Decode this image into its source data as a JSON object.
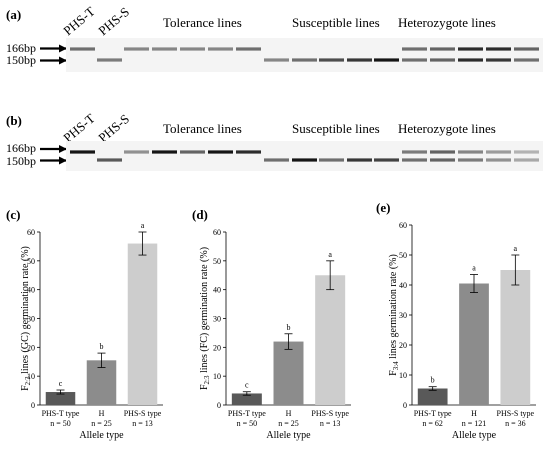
{
  "gels": [
    {
      "panel": "(a)",
      "size_labels": [
        "166bp",
        "150bp"
      ],
      "col_labels": [
        "PHS-T",
        "PHS-S"
      ],
      "group_labels": [
        "Tolerance lines",
        "Susceptible lines",
        "Heterozygote lines"
      ],
      "lanes": [
        {
          "group": "PHS-T",
          "bands": [
            {
              "bp": 166,
              "intensity": 0.55
            }
          ]
        },
        {
          "group": "PHS-S",
          "bands": [
            {
              "bp": 150,
              "intensity": 0.5
            }
          ]
        },
        {
          "group": "tolerance",
          "bands": [
            {
              "bp": 166,
              "intensity": 0.45
            }
          ]
        },
        {
          "group": "tolerance",
          "bands": [
            {
              "bp": 166,
              "intensity": 0.45
            }
          ]
        },
        {
          "group": "tolerance",
          "bands": [
            {
              "bp": 166,
              "intensity": 0.45
            }
          ]
        },
        {
          "group": "tolerance",
          "bands": [
            {
              "bp": 166,
              "intensity": 0.45
            }
          ]
        },
        {
          "group": "tolerance",
          "bands": [
            {
              "bp": 166,
              "intensity": 0.55
            }
          ]
        },
        {
          "group": "susceptible",
          "bands": [
            {
              "bp": 150,
              "intensity": 0.45
            }
          ]
        },
        {
          "group": "susceptible",
          "bands": [
            {
              "bp": 150,
              "intensity": 0.55
            }
          ]
        },
        {
          "group": "susceptible",
          "bands": [
            {
              "bp": 150,
              "intensity": 0.7
            }
          ]
        },
        {
          "group": "susceptible",
          "bands": [
            {
              "bp": 150,
              "intensity": 0.8
            }
          ]
        },
        {
          "group": "susceptible",
          "bands": [
            {
              "bp": 150,
              "intensity": 0.95
            }
          ]
        },
        {
          "group": "heterozygote",
          "bands": [
            {
              "bp": 166,
              "intensity": 0.55
            },
            {
              "bp": 150,
              "intensity": 0.55
            }
          ]
        },
        {
          "group": "heterozygote",
          "bands": [
            {
              "bp": 166,
              "intensity": 0.6
            },
            {
              "bp": 150,
              "intensity": 0.6
            }
          ]
        },
        {
          "group": "heterozygote",
          "bands": [
            {
              "bp": 166,
              "intensity": 0.85
            },
            {
              "bp": 150,
              "intensity": 0.85
            }
          ]
        },
        {
          "group": "heterozygote",
          "bands": [
            {
              "bp": 166,
              "intensity": 0.85
            },
            {
              "bp": 150,
              "intensity": 0.8
            }
          ]
        },
        {
          "group": "heterozygote",
          "bands": [
            {
              "bp": 166,
              "intensity": 0.6
            },
            {
              "bp": 150,
              "intensity": 0.55
            }
          ]
        }
      ]
    },
    {
      "panel": "(b)",
      "size_labels": [
        "166bp",
        "150bp"
      ],
      "col_labels": [
        "PHS-T",
        "PHS-S"
      ],
      "group_labels": [
        "Tolerance lines",
        "Susceptible lines",
        "Heterozygote lines"
      ],
      "lanes": [
        {
          "group": "PHS-T",
          "bands": [
            {
              "bp": 166,
              "intensity": 0.95
            }
          ]
        },
        {
          "group": "PHS-S",
          "bands": [
            {
              "bp": 150,
              "intensity": 0.65
            }
          ]
        },
        {
          "group": "tolerance",
          "bands": [
            {
              "bp": 166,
              "intensity": 0.4
            }
          ]
        },
        {
          "group": "tolerance",
          "bands": [
            {
              "bp": 166,
              "intensity": 0.95
            }
          ]
        },
        {
          "group": "tolerance",
          "bands": [
            {
              "bp": 166,
              "intensity": 0.6
            }
          ]
        },
        {
          "group": "tolerance",
          "bands": [
            {
              "bp": 166,
              "intensity": 0.95
            }
          ]
        },
        {
          "group": "tolerance",
          "bands": [
            {
              "bp": 166,
              "intensity": 0.85
            }
          ]
        },
        {
          "group": "susceptible",
          "bands": [
            {
              "bp": 150,
              "intensity": 0.55
            }
          ]
        },
        {
          "group": "susceptible",
          "bands": [
            {
              "bp": 150,
              "intensity": 0.95
            }
          ]
        },
        {
          "group": "susceptible",
          "bands": [
            {
              "bp": 150,
              "intensity": 0.55
            }
          ]
        },
        {
          "group": "susceptible",
          "bands": [
            {
              "bp": 150,
              "intensity": 0.8
            }
          ]
        },
        {
          "group": "susceptible",
          "bands": [
            {
              "bp": 150,
              "intensity": 0.75
            }
          ]
        },
        {
          "group": "heterozygote",
          "bands": [
            {
              "bp": 166,
              "intensity": 0.5
            },
            {
              "bp": 150,
              "intensity": 0.55
            }
          ]
        },
        {
          "group": "heterozygote",
          "bands": [
            {
              "bp": 166,
              "intensity": 0.6
            },
            {
              "bp": 150,
              "intensity": 0.6
            }
          ]
        },
        {
          "group": "heterozygote",
          "bands": [
            {
              "bp": 166,
              "intensity": 0.45
            },
            {
              "bp": 150,
              "intensity": 0.5
            }
          ]
        },
        {
          "group": "heterozygote",
          "bands": [
            {
              "bp": 166,
              "intensity": 0.35
            },
            {
              "bp": 150,
              "intensity": 0.4
            }
          ]
        },
        {
          "group": "heterozygote",
          "bands": [
            {
              "bp": 166,
              "intensity": 0.25
            },
            {
              "bp": 150,
              "intensity": 0.3
            }
          ]
        }
      ]
    }
  ],
  "chart_data": [
    {
      "panel": "(c)",
      "type": "bar",
      "categories": [
        "PHS-T type",
        "H",
        "PHS-S type"
      ],
      "sample_sizes": [
        "n = 50",
        "n = 25",
        "n = 13"
      ],
      "values": [
        4.5,
        15.5,
        56
      ],
      "errors": [
        0.7,
        2.5,
        4
      ],
      "letters": [
        "c",
        "b",
        "a"
      ],
      "colors": [
        "#595959",
        "#8c8c8c",
        "#cdcdcd"
      ],
      "ylabel": "F2:3 lines (GC) germination rate (%)",
      "ylabel_main": "F",
      "ylabel_sub": "2:3",
      "ylabel_rest": " lines (GC) germination rate (%)",
      "xlabel": "Allele type",
      "ylim": [
        0,
        60
      ],
      "yticks": [
        0,
        10,
        20,
        30,
        40,
        50,
        60
      ],
      "grid": false
    },
    {
      "panel": "(d)",
      "type": "bar",
      "categories": [
        "PHS-T type",
        "H",
        "PHS-S type"
      ],
      "sample_sizes": [
        "n = 50",
        "n = 25",
        "n = 13"
      ],
      "values": [
        4,
        22,
        45
      ],
      "errors": [
        0.6,
        2.7,
        5
      ],
      "letters": [
        "c",
        "b",
        "a"
      ],
      "colors": [
        "#595959",
        "#8c8c8c",
        "#cdcdcd"
      ],
      "ylabel": "F2:3 lines (FC) germination rate (%)",
      "ylabel_main": "F",
      "ylabel_sub": "2:3",
      "ylabel_rest": " lines (FC) germination rate (%)",
      "xlabel": "Allele type",
      "ylim": [
        0,
        60
      ],
      "yticks": [
        0,
        10,
        20,
        30,
        40,
        50,
        60
      ],
      "grid": false
    },
    {
      "panel": "(e)",
      "type": "bar",
      "categories": [
        "PHS-T type",
        "H",
        "PHS-S type"
      ],
      "sample_sizes": [
        "n = 62",
        "n = 121",
        "n = 36"
      ],
      "values": [
        5.5,
        40.5,
        45
      ],
      "errors": [
        0.6,
        3,
        5
      ],
      "letters": [
        "b",
        "a",
        "a"
      ],
      "colors": [
        "#595959",
        "#8c8c8c",
        "#cdcdcd"
      ],
      "ylabel": "F3:4 lines germination rate (%)",
      "ylabel_main": "F",
      "ylabel_sub": "3:4",
      "ylabel_rest": " lines germination rate (%)",
      "xlabel": "Allele type",
      "ylim": [
        0,
        60
      ],
      "yticks": [
        0,
        10,
        20,
        30,
        40,
        50,
        60
      ],
      "grid": false
    }
  ]
}
